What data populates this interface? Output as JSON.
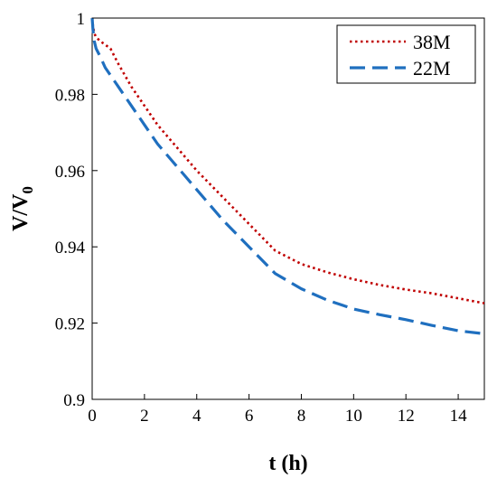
{
  "chart_data": {
    "type": "line",
    "xlabel": "t (h)",
    "ylabel_main": "V/V",
    "ylabel_sub": "0",
    "xlim": [
      0,
      15
    ],
    "ylim": [
      0.9,
      1.0
    ],
    "x_ticks": [
      0,
      2,
      4,
      6,
      8,
      10,
      12,
      14
    ],
    "y_ticks": [
      0.9,
      0.92,
      0.94,
      0.96,
      0.98,
      1.0
    ],
    "y_tick_labels": [
      "0.9",
      "0.92",
      "0.94",
      "0.96",
      "0.98",
      "1"
    ],
    "grid": false,
    "legend_position": "top-right",
    "series": [
      {
        "name": "38M",
        "color": "#c00000",
        "style": "dotted",
        "x": [
          0,
          0.03,
          0.08,
          0.15,
          0.3,
          0.5,
          0.7,
          1,
          1.5,
          2,
          2.5,
          3,
          3.5,
          4,
          5,
          6,
          7,
          8,
          9,
          10,
          11,
          12,
          13,
          14,
          15
        ],
        "y": [
          1.0,
          0.998,
          0.996,
          0.995,
          0.994,
          0.993,
          0.992,
          0.988,
          0.982,
          0.977,
          0.972,
          0.968,
          0.964,
          0.96,
          0.953,
          0.946,
          0.939,
          0.9355,
          0.9333,
          0.9315,
          0.93,
          0.9288,
          0.9278,
          0.9265,
          0.9252
        ]
      },
      {
        "name": "22M",
        "color": "#1f6fbf",
        "style": "dashed",
        "x": [
          0,
          0.03,
          0.08,
          0.15,
          0.3,
          0.5,
          1,
          1.5,
          2,
          2.5,
          3,
          3.5,
          4,
          5,
          6,
          7,
          8,
          9,
          10,
          11,
          12,
          13,
          14,
          15
        ],
        "y": [
          1.0,
          0.997,
          0.994,
          0.992,
          0.99,
          0.987,
          0.982,
          0.977,
          0.972,
          0.967,
          0.963,
          0.959,
          0.955,
          0.947,
          0.94,
          0.933,
          0.929,
          0.926,
          0.9237,
          0.9222,
          0.9209,
          0.9194,
          0.918,
          0.9172
        ]
      }
    ]
  }
}
